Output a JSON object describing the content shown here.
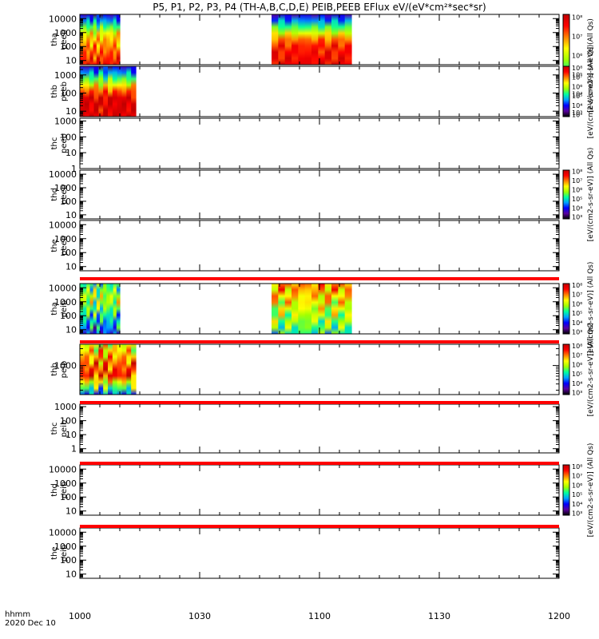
{
  "title": "P5, P1, P2, P3, P4 (TH-A,B,C,D,E) PEIB,PEEB EFlux eV/(eV*cm²*sec*sr)",
  "x_axis": {
    "row_label": "hhmm",
    "date_label": "2020 Dec 10",
    "ticks": [
      "1000",
      "1030",
      "1100",
      "1130",
      "1200"
    ]
  },
  "colors": {
    "colormap": [
      "#000000",
      "#5a00a0",
      "#0000ff",
      "#00a0ff",
      "#00ffa0",
      "#a0ff00",
      "#ffff00",
      "#ff8000",
      "#ff0000",
      "#c00000"
    ],
    "no_data_bar": "#ff0000"
  },
  "chart_data": [
    {
      "type": "heatmap",
      "panel": "tha-peeb",
      "ylabel": [
        "tha",
        "peeb"
      ],
      "yscale": "log",
      "ylim": [
        5,
        20000
      ],
      "yticks": [
        "10",
        "100",
        "1000",
        "10000"
      ],
      "colorbar": {
        "ticks": [
          "10³",
          "10⁴",
          "10⁵",
          "10⁶",
          "10⁷",
          "10⁸"
        ],
        "label": "[eV/(cm2-s-sr-eV)] (All Qs)"
      },
      "segments": [
        {
          "start": "10:00",
          "end": "10:10",
          "pattern": "A"
        },
        {
          "start": "10:48",
          "end": "11:08",
          "pattern": "B"
        }
      ]
    },
    {
      "type": "heatmap",
      "panel": "thb-peeb",
      "ylabel": [
        "thb",
        "peeb"
      ],
      "yscale": "log",
      "ylim": [
        5,
        3000
      ],
      "yticks": [
        "10",
        "100",
        "1000"
      ],
      "colorbar": {
        "ticks": [
          "10³",
          "10⁴",
          "10⁵",
          "10⁶",
          "10⁷",
          "10⁸"
        ],
        "label": "[eV/(cm2-s-sr-eV)] (All Qs)"
      },
      "segments": [
        {
          "start": "10:00",
          "end": "10:14",
          "pattern": "C"
        }
      ]
    },
    {
      "type": "heatmap",
      "panel": "thc-peeb",
      "ylabel": [
        "thc",
        "peeb"
      ],
      "yscale": "log",
      "ylim": [
        1,
        1500
      ],
      "yticks": [
        "1",
        "10",
        "100",
        "1000"
      ],
      "segments": []
    },
    {
      "type": "heatmap",
      "panel": "thd-peeb",
      "ylabel": [
        "thd",
        "peeb"
      ],
      "yscale": "log",
      "ylim": [
        5,
        20000
      ],
      "yticks": [
        "10",
        "100",
        "1000",
        "10000"
      ],
      "colorbar": {
        "ticks": [
          "10³",
          "10⁴",
          "10⁵",
          "10⁶",
          "10⁷",
          "10⁸"
        ],
        "label": "[eV/(cm2-s-sr-eV)] (All Qs)"
      },
      "segments": []
    },
    {
      "type": "heatmap",
      "panel": "the-peeb",
      "ylabel": [
        "the",
        "peeb"
      ],
      "yscale": "log",
      "ylim": [
        5,
        20000
      ],
      "yticks": [
        "10",
        "100",
        "1000",
        "10000"
      ],
      "segments": []
    },
    {
      "type": "heatmap",
      "panel": "tha-peib",
      "ylabel": [
        "tha",
        "peib"
      ],
      "yscale": "log",
      "ylim": [
        5,
        20000
      ],
      "yticks": [
        "10",
        "100",
        "1000",
        "10000"
      ],
      "colorbar": {
        "ticks": [
          "10³",
          "10⁴",
          "10⁵",
          "10⁶",
          "10⁷",
          "10⁸"
        ],
        "label": "[eV/(cm2-s-sr-eV)] (All Qs)"
      },
      "segments": [
        {
          "start": "10:00",
          "end": "10:10",
          "pattern": "D"
        },
        {
          "start": "10:48",
          "end": "11:08",
          "pattern": "E"
        }
      ]
    },
    {
      "type": "heatmap",
      "panel": "thb-peib",
      "ylabel": [
        "thb",
        "peib"
      ],
      "yscale": "log",
      "ylim": [
        150,
        4000
      ],
      "yticks": [
        "1000"
      ],
      "colorbar": {
        "ticks": [
          "10³",
          "10⁴",
          "10⁵",
          "10⁶",
          "10⁷",
          "10⁸"
        ],
        "label": "[eV/(cm2-s-sr-eV)] (All Qs)"
      },
      "segments": [
        {
          "start": "10:00",
          "end": "10:14",
          "pattern": "F"
        }
      ]
    },
    {
      "type": "heatmap",
      "panel": "thc-peib",
      "ylabel": [
        "thc",
        "peib"
      ],
      "yscale": "log",
      "ylim": [
        0.5,
        1500
      ],
      "yticks": [
        "1",
        "10",
        "100",
        "1000"
      ],
      "segments": []
    },
    {
      "type": "heatmap",
      "panel": "thd-peib",
      "ylabel": [
        "thd",
        "peib"
      ],
      "yscale": "log",
      "ylim": [
        5,
        20000
      ],
      "yticks": [
        "10",
        "100",
        "1000",
        "10000"
      ],
      "colorbar": {
        "ticks": [
          "10³",
          "10⁴",
          "10⁵",
          "10⁶",
          "10⁷",
          "10⁸"
        ],
        "label": "[eV/(cm2-s-sr-eV)] (All Qs)"
      },
      "segments": []
    },
    {
      "type": "heatmap",
      "panel": "the-peib",
      "ylabel": [
        "the",
        "peib"
      ],
      "yscale": "log",
      "ylim": [
        5,
        20000
      ],
      "yticks": [
        "10",
        "100",
        "1000",
        "10000"
      ],
      "segments": []
    }
  ]
}
